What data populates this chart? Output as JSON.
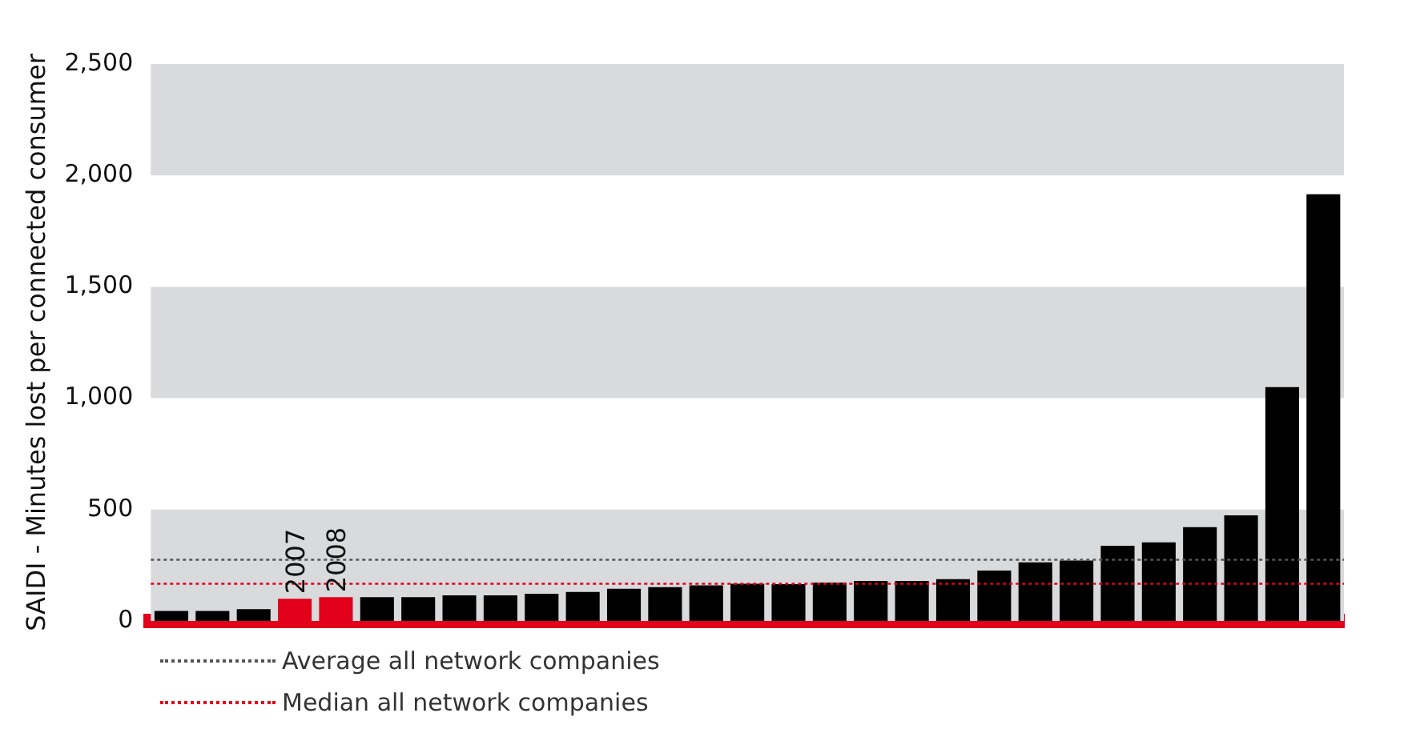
{
  "chart_data": {
    "type": "bar",
    "ylabel": "SAIDI - Minutes lost per connected consumer",
    "categories": [
      null,
      null,
      null,
      "2007",
      "2008",
      null,
      null,
      null,
      null,
      null,
      null,
      null,
      null,
      null,
      null,
      null,
      null,
      null,
      null,
      null,
      null,
      null,
      null,
      null,
      null,
      null,
      null,
      null,
      null
    ],
    "values": [
      45,
      45,
      53,
      100,
      107,
      107,
      107,
      115,
      115,
      122,
      130,
      145,
      152,
      160,
      167,
      165,
      172,
      180,
      180,
      188,
      226,
      263,
      271,
      338,
      353,
      421,
      474,
      1050,
      1915
    ],
    "colors": [
      "#000000",
      "#000000",
      "#000000",
      "#e2001a",
      "#e2001a",
      "#000000",
      "#000000",
      "#000000",
      "#000000",
      "#000000",
      "#000000",
      "#000000",
      "#000000",
      "#000000",
      "#000000",
      "#000000",
      "#000000",
      "#000000",
      "#000000",
      "#000000",
      "#000000",
      "#000000",
      "#000000",
      "#000000",
      "#000000",
      "#000000",
      "#000000",
      "#000000",
      "#000000"
    ],
    "ylim": [
      0,
      2500
    ],
    "yticks": [
      0,
      500,
      {
        "value": 1000,
        "label": "1,000"
      },
      {
        "value": 1500,
        "label": "1,500"
      },
      {
        "value": 2000,
        "label": "2,000"
      },
      {
        "value": 2500,
        "label": "2,500"
      }
    ],
    "bands": [
      {
        "axis": "y",
        "from": 0,
        "to": 500,
        "color": "#d9dadc"
      },
      {
        "axis": "y",
        "from": 1000,
        "to": 1500,
        "color": "#d9dadc"
      },
      {
        "axis": "y",
        "from": 2000,
        "to": 2500,
        "color": "#d9dadc"
      }
    ],
    "legend": "bottom left",
    "ref_lines": [
      {
        "axis": "y",
        "value": 275,
        "label": "Average all network companies",
        "color": "#555555",
        "line_style": "dotted"
      },
      {
        "axis": "y",
        "value": 167,
        "label": "Median all network companies",
        "color": "#e2001a",
        "line_style": "dotted"
      }
    ]
  }
}
